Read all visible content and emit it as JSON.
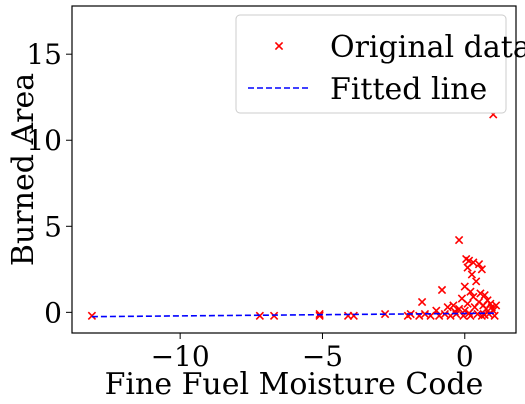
{
  "chart_data": {
    "type": "scatter",
    "xlabel": "Fine Fuel Moisture Code",
    "ylabel": "Burned Area",
    "xlim": [
      -13.8,
      1.8
    ],
    "ylim": [
      -1.2,
      17.8
    ],
    "xticks": [
      -10,
      -5,
      0
    ],
    "xtick_labels": [
      "−10",
      "−5",
      "0"
    ],
    "yticks": [
      0,
      5,
      10,
      15
    ],
    "ytick_labels": [
      "0",
      "5",
      "10",
      "15"
    ],
    "grid": false,
    "legend_position": "top-right",
    "series": [
      {
        "name": "Original data",
        "kind": "scatter",
        "marker": "x",
        "color": "#ff0000",
        "points": [
          [
            -13.1,
            -0.2
          ],
          [
            -7.2,
            -0.2
          ],
          [
            -6.7,
            -0.2
          ],
          [
            -5.1,
            -0.1
          ],
          [
            -5.1,
            -0.2
          ],
          [
            -4.1,
            -0.2
          ],
          [
            -3.9,
            -0.2
          ],
          [
            -2.8,
            -0.1
          ],
          [
            -2.0,
            -0.2
          ],
          [
            -1.9,
            -0.1
          ],
          [
            -1.6,
            -0.2
          ],
          [
            -1.5,
            0.6
          ],
          [
            -1.4,
            -0.1
          ],
          [
            -1.2,
            -0.2
          ],
          [
            -1.0,
            0.1
          ],
          [
            -0.9,
            -0.2
          ],
          [
            -0.8,
            1.3
          ],
          [
            -0.7,
            -0.1
          ],
          [
            -0.6,
            0.3
          ],
          [
            -0.5,
            -0.2
          ],
          [
            -0.4,
            0.4
          ],
          [
            -0.3,
            -0.1
          ],
          [
            -0.2,
            4.2
          ],
          [
            -0.2,
            0.2
          ],
          [
            -0.1,
            0.8
          ],
          [
            -0.05,
            -0.2
          ],
          [
            0.0,
            1.5
          ],
          [
            0.0,
            0.1
          ],
          [
            0.05,
            3.1
          ],
          [
            0.1,
            2.6
          ],
          [
            0.1,
            0.5
          ],
          [
            0.15,
            3.0
          ],
          [
            0.2,
            1.2
          ],
          [
            0.2,
            -0.2
          ],
          [
            0.25,
            2.2
          ],
          [
            0.3,
            0.9
          ],
          [
            0.3,
            2.9
          ],
          [
            0.35,
            17.0
          ],
          [
            0.35,
            0.3
          ],
          [
            0.4,
            1.8
          ],
          [
            0.45,
            -0.1
          ],
          [
            0.5,
            2.8
          ],
          [
            0.5,
            0.6
          ],
          [
            0.55,
            1.1
          ],
          [
            0.6,
            2.5
          ],
          [
            0.6,
            -0.2
          ],
          [
            0.65,
            0.4
          ],
          [
            0.7,
            1.0
          ],
          [
            0.75,
            0.2
          ],
          [
            0.8,
            0.7
          ],
          [
            0.85,
            -0.1
          ],
          [
            0.9,
            0.5
          ],
          [
            0.95,
            0.3
          ],
          [
            1.0,
            11.5
          ],
          [
            1.0,
            0.1
          ],
          [
            1.05,
            -0.2
          ],
          [
            1.1,
            0.4
          ],
          [
            0.15,
            -0.05
          ],
          [
            -0.35,
            0.05
          ],
          [
            0.7,
            -0.15
          ]
        ]
      },
      {
        "name": "Fitted line",
        "kind": "line",
        "style": "dashed",
        "color": "#0000ff",
        "points": [
          [
            -13.1,
            -0.25
          ],
          [
            1.1,
            -0.05
          ]
        ]
      }
    ]
  }
}
